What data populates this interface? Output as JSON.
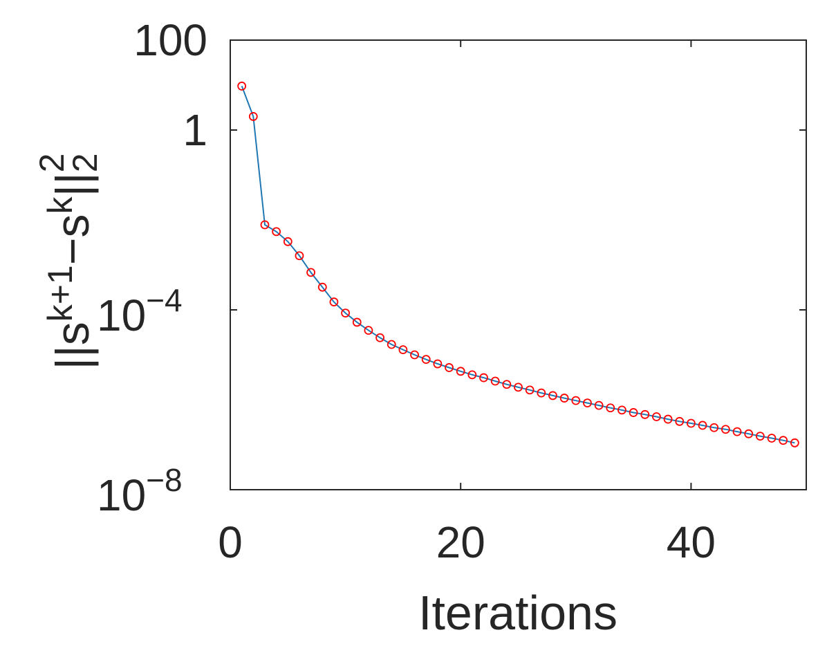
{
  "chart_data": {
    "type": "line",
    "title": "",
    "xlabel": "Iterations",
    "ylabel": {
      "base": "||s",
      "sup1": "k+1",
      "mid": "−s",
      "sup2": "k",
      "end": "||",
      "sub": "2",
      "sup3": "2"
    },
    "xlim": [
      0,
      50
    ],
    "ylim": [
      1e-08,
      100
    ],
    "yscale": "log",
    "grid": false,
    "legend": "none",
    "x_ticks": [
      {
        "value": 0,
        "label": "0"
      },
      {
        "value": 20,
        "label": "20"
      },
      {
        "value": 40,
        "label": "40"
      }
    ],
    "y_ticks": [
      {
        "value": 100,
        "label": "100",
        "exp": ""
      },
      {
        "value": 1,
        "label": "1",
        "exp": ""
      },
      {
        "value": 0.0001,
        "label": "10",
        "exp": "−4"
      },
      {
        "value": 1e-08,
        "label": "10",
        "exp": "−8"
      }
    ],
    "series": [
      {
        "line_color": "#1f77b4",
        "marker_color": "#ff0000",
        "marker": "circle",
        "x": [
          1,
          2,
          3,
          4,
          5,
          6,
          7,
          8,
          9,
          10,
          11,
          12,
          13,
          14,
          15,
          16,
          17,
          18,
          19,
          20,
          21,
          22,
          23,
          24,
          25,
          26,
          27,
          28,
          29,
          30,
          31,
          32,
          33,
          34,
          35,
          36,
          37,
          38,
          39,
          40,
          41,
          42,
          43,
          44,
          45,
          46,
          47,
          48,
          49
        ],
        "y": [
          9.5,
          2.0,
          0.0078,
          0.0055,
          0.0033,
          0.0016,
          0.00068,
          0.00032,
          0.00015,
          8.5e-05,
          5.3e-05,
          3.5e-05,
          2.4e-05,
          1.7e-05,
          1.3e-05,
          1e-05,
          7.9e-06,
          6.3e-06,
          5.2e-06,
          4.3e-06,
          3.6e-06,
          3.1e-06,
          2.6e-06,
          2.2e-06,
          1.9e-06,
          1.65e-06,
          1.42e-06,
          1.24e-06,
          1.09e-06,
          9.6e-07,
          8.5e-07,
          7.5e-07,
          6.6e-07,
          5.9e-07,
          5.2e-07,
          4.7e-07,
          4.2e-07,
          3.7e-07,
          3.3e-07,
          3e-07,
          2.7e-07,
          2.4e-07,
          2.2e-07,
          1.95e-07,
          1.75e-07,
          1.55e-07,
          1.4e-07,
          1.25e-07,
          1.1e-07
        ]
      }
    ]
  }
}
